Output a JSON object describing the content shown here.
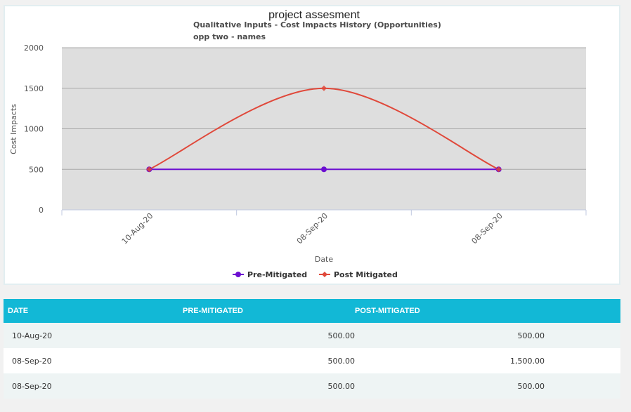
{
  "chart_data": {
    "type": "line",
    "title": "project assesment",
    "subtitle": "Qualitative Inputs - Cost Impacts History (Opportunities)",
    "subtitle2": "opp two - names",
    "xlabel": "Date",
    "ylabel": "Cost Impacts",
    "categories": [
      "10-Aug-20",
      "08-Sep-20",
      "08-Sep-20"
    ],
    "ylim": [
      0,
      2000
    ],
    "yticks": [
      "0",
      "500",
      "1000",
      "1500",
      "2000"
    ],
    "grid": true,
    "legend_position": "bottom",
    "series": [
      {
        "name": "Pre-Mitigated",
        "values": [
          500,
          500,
          500
        ],
        "color": "#6c0fd1",
        "marker": "circle"
      },
      {
        "name": "Post Mitigated",
        "values": [
          500,
          1500,
          500
        ],
        "color": "#e0483a",
        "marker": "diamond",
        "smooth": true
      }
    ],
    "plot_background": "#dedede"
  },
  "table": {
    "headers": [
      "DATE",
      "PRE-MITIGATED",
      "POST-MITIGATED"
    ],
    "rows": [
      [
        "10-Aug-20",
        "500.00",
        "500.00"
      ],
      [
        "08-Sep-20",
        "500.00",
        "1,500.00"
      ],
      [
        "08-Sep-20",
        "500.00",
        "500.00"
      ]
    ],
    "header_color": "#12b8d6"
  }
}
